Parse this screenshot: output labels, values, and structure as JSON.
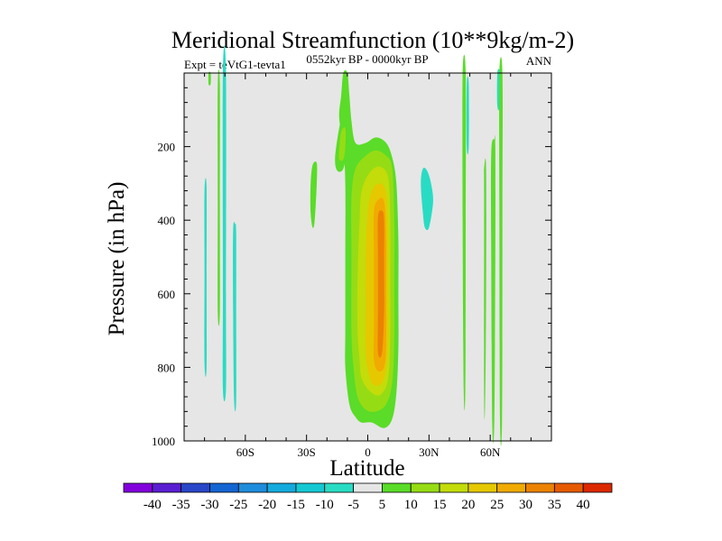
{
  "chart_data": {
    "type": "contour",
    "title": "Meridional Streamfunction (10**9kg/m-2)",
    "experiment_label": "Expt = teVtG1-tevta1",
    "period_label": "0552kyr BP - 0000kyr BP",
    "season_label": "ANN",
    "xlabel": "Latitude",
    "ylabel": "Pressure (in hPa)",
    "x_ticks": [
      {
        "value": -60,
        "label": "60S"
      },
      {
        "value": -30,
        "label": "30S"
      },
      {
        "value": 0,
        "label": "0"
      },
      {
        "value": 30,
        "label": "30N"
      },
      {
        "value": 60,
        "label": "60N"
      }
    ],
    "y_ticks": [
      {
        "value": 200,
        "label": "200"
      },
      {
        "value": 400,
        "label": "400"
      },
      {
        "value": 600,
        "label": "600"
      },
      {
        "value": 800,
        "label": "800"
      },
      {
        "value": 1000,
        "label": "1000"
      }
    ],
    "xlim": [
      -90,
      90
    ],
    "ylim": [
      0,
      1000
    ],
    "background_color": "#e6e6e6",
    "colorbar": {
      "labels": [
        "-40",
        "-35",
        "-30",
        "-25",
        "-20",
        "-15",
        "-10",
        "-5",
        "5",
        "10",
        "15",
        "20",
        "25",
        "30",
        "35",
        "40"
      ],
      "colors": [
        "#8200dc",
        "#5a1ed2",
        "#2846c8",
        "#1464d2",
        "#1e8cdc",
        "#14aadc",
        "#14c8d2",
        "#28dcc3",
        "#e6e6e6",
        "#5adc28",
        "#96dc14",
        "#c3dc0a",
        "#e6c800",
        "#f0aa00",
        "#eb8200",
        "#e65a00",
        "#dc2800"
      ]
    },
    "regions": [
      {
        "name": "positive-band-5-10",
        "level": "5 to 10",
        "color": "#5adc28",
        "points": [
          [
            -11,
            700
          ],
          [
            -11,
            500
          ],
          [
            -11,
            300
          ],
          [
            -12,
            200
          ],
          [
            -14,
            120
          ],
          [
            -13,
            60
          ],
          [
            -12,
            0
          ],
          [
            -10,
            0
          ],
          [
            -9,
            60
          ],
          [
            -8,
            130
          ],
          [
            -6,
            190
          ],
          [
            -1,
            190
          ],
          [
            4,
            175
          ],
          [
            9,
            190
          ],
          [
            12,
            230
          ],
          [
            14,
            300
          ],
          [
            15,
            450
          ],
          [
            15,
            600
          ],
          [
            15,
            750
          ],
          [
            14,
            870
          ],
          [
            12,
            940
          ],
          [
            8,
            965
          ],
          [
            2,
            950
          ],
          [
            -3,
            950
          ],
          [
            -6,
            935
          ],
          [
            -9,
            900
          ],
          [
            -11,
            800
          ]
        ]
      },
      {
        "name": "positive-band-10-15",
        "level": "10 to 15",
        "color": "#96dc14",
        "points": [
          [
            -8,
            700
          ],
          [
            -8,
            500
          ],
          [
            -8,
            340
          ],
          [
            -6,
            260
          ],
          [
            -1,
            225
          ],
          [
            4,
            210
          ],
          [
            9,
            225
          ],
          [
            12,
            260
          ],
          [
            13,
            400
          ],
          [
            13,
            550
          ],
          [
            13,
            720
          ],
          [
            12,
            840
          ],
          [
            9,
            900
          ],
          [
            4,
            920
          ],
          [
            -1,
            915
          ],
          [
            -5,
            880
          ],
          [
            -7,
            800
          ]
        ]
      },
      {
        "name": "positive-band-15-20",
        "level": "15 to 20",
        "color": "#c3dc0a",
        "points": [
          [
            -5,
            700
          ],
          [
            -5,
            550
          ],
          [
            -4,
            400
          ],
          [
            -3,
            320
          ],
          [
            1,
            270
          ],
          [
            6,
            255
          ],
          [
            10,
            285
          ],
          [
            11,
            400
          ],
          [
            11,
            550
          ],
          [
            11,
            700
          ],
          [
            10,
            830
          ],
          [
            6,
            875
          ],
          [
            1,
            865
          ],
          [
            -3,
            830
          ],
          [
            -4,
            780
          ]
        ]
      },
      {
        "name": "positive-band-20-25",
        "level": "20 to 25",
        "color": "#e6c800",
        "points": [
          [
            -1,
            650
          ],
          [
            -1,
            500
          ],
          [
            0,
            380
          ],
          [
            2,
            320
          ],
          [
            6,
            300
          ],
          [
            9,
            330
          ],
          [
            10,
            450
          ],
          [
            10,
            600
          ],
          [
            10,
            740
          ],
          [
            8,
            830
          ],
          [
            4,
            850
          ],
          [
            1,
            830
          ],
          [
            -1,
            760
          ]
        ]
      },
      {
        "name": "positive-band-25-30",
        "level": "25 to 30",
        "color": "#f0aa00",
        "points": [
          [
            3,
            700
          ],
          [
            3,
            500
          ],
          [
            3,
            380
          ],
          [
            5,
            345
          ],
          [
            8,
            350
          ],
          [
            9,
            450
          ],
          [
            9,
            600
          ],
          [
            9,
            740
          ],
          [
            8,
            800
          ],
          [
            5,
            810
          ],
          [
            3,
            780
          ]
        ]
      },
      {
        "name": "positive-band-30-35",
        "level": "30 to 35",
        "color": "#eb8200",
        "points": [
          [
            5,
            650
          ],
          [
            5,
            500
          ],
          [
            5,
            390
          ],
          [
            7,
            375
          ],
          [
            8,
            400
          ],
          [
            8,
            520
          ],
          [
            8,
            650
          ],
          [
            7,
            760
          ],
          [
            5,
            760
          ]
        ]
      },
      {
        "name": "upper-left-patch",
        "level": "5 to 10",
        "color": "#5adc28",
        "points": [
          [
            -16,
            230
          ],
          [
            -14,
            150
          ],
          [
            -12,
            110
          ],
          [
            -10,
            140
          ],
          [
            -10,
            200
          ],
          [
            -12,
            260
          ],
          [
            -15,
            265
          ]
        ]
      },
      {
        "name": "upper-left-core",
        "level": "10 to 15",
        "color": "#96dc14",
        "points": [
          [
            -14,
            210
          ],
          [
            -13,
            160
          ],
          [
            -11,
            150
          ],
          [
            -11,
            200
          ],
          [
            -12,
            235
          ],
          [
            -14,
            235
          ]
        ]
      },
      {
        "name": "midlat-south-patch",
        "level": "5 to 10",
        "color": "#5adc28",
        "points": [
          [
            -28,
            300
          ],
          [
            -27,
            250
          ],
          [
            -25,
            245
          ],
          [
            -25,
            300
          ],
          [
            -26,
            400
          ],
          [
            -27,
            420
          ],
          [
            -28,
            380
          ]
        ]
      },
      {
        "name": "negative-patch-28N",
        "level": "-10 to -5",
        "color": "#28dcc3",
        "points": [
          [
            26,
            300
          ],
          [
            27,
            260
          ],
          [
            29,
            265
          ],
          [
            31,
            300
          ],
          [
            32,
            350
          ],
          [
            30,
            420
          ],
          [
            28,
            420
          ],
          [
            27,
            380
          ]
        ]
      },
      {
        "name": "thin-neg-80S",
        "level": "-10 to -5",
        "color": "#28dcc3",
        "points": [
          [
            -80,
            550
          ],
          [
            -80,
            320
          ],
          [
            -79,
            310
          ],
          [
            -79,
            550
          ],
          [
            -79,
            800
          ],
          [
            -80,
            790
          ]
        ]
      },
      {
        "name": "thin-pos-78S",
        "level": "5 to 10",
        "color": "#5adc28",
        "points": [
          [
            -78,
            0
          ],
          [
            -77,
            0
          ],
          [
            -77,
            30
          ],
          [
            -78,
            30
          ]
        ]
      },
      {
        "name": "thin-pos-73S",
        "level": "5 to 10",
        "color": "#5adc28",
        "points": [
          [
            -73.5,
            350
          ],
          [
            -73.5,
            30
          ],
          [
            -72.5,
            30
          ],
          [
            -72.5,
            350
          ],
          [
            -72.5,
            650
          ],
          [
            -73.5,
            650
          ]
        ]
      },
      {
        "name": "thin-neg-71S",
        "level": "-10 to -5",
        "color": "#28dcc3",
        "points": [
          [
            -71,
            600
          ],
          [
            -71,
            0
          ],
          [
            -69.5,
            0
          ],
          [
            -69.5,
            600
          ],
          [
            -69.5,
            860
          ],
          [
            -71,
            860
          ]
        ]
      },
      {
        "name": "thin-neg-65S",
        "level": "-10 to -5",
        "color": "#28dcc3",
        "points": [
          [
            -66,
            650
          ],
          [
            -66,
            430
          ],
          [
            -65,
            410
          ],
          [
            -64.5,
            440
          ],
          [
            -64.5,
            650
          ],
          [
            -64.5,
            890
          ],
          [
            -65.5,
            890
          ]
        ]
      },
      {
        "name": "thin-pos-47N",
        "level": "5 to 10",
        "color": "#5adc28",
        "points": [
          [
            46.5,
            400
          ],
          [
            46.5,
            0
          ],
          [
            48,
            0
          ],
          [
            48,
            400
          ],
          [
            47.8,
            860
          ],
          [
            47,
            860
          ]
        ]
      },
      {
        "name": "thin-neg-50N",
        "level": "-10 to -5",
        "color": "#28dcc3",
        "points": [
          [
            48.5,
            30
          ],
          [
            49.5,
            30
          ],
          [
            49.5,
            200
          ],
          [
            48.5,
            200
          ]
        ]
      },
      {
        "name": "thin-pos-61N",
        "level": "5 to 10",
        "color": "#5adc28",
        "points": [
          [
            60.5,
            500
          ],
          [
            60.5,
            220
          ],
          [
            62,
            180
          ],
          [
            62.5,
            200
          ],
          [
            62.5,
            500
          ],
          [
            62,
            950
          ],
          [
            61,
            950
          ]
        ]
      },
      {
        "name": "thin-pos-58N",
        "level": "5 to 10",
        "color": "#5adc28",
        "points": [
          [
            57,
            330
          ],
          [
            57,
            260
          ],
          [
            58,
            260
          ],
          [
            58,
            600
          ],
          [
            57.5,
            900
          ],
          [
            57,
            880
          ]
        ]
      },
      {
        "name": "thin-neg-64N",
        "level": "-10 to -5",
        "color": "#28dcc3",
        "points": [
          [
            63.5,
            0
          ],
          [
            64.8,
            0
          ],
          [
            64.8,
            90
          ],
          [
            63.5,
            90
          ]
        ]
      },
      {
        "name": "thin-pos-65N",
        "level": "5 to 10",
        "color": "#5adc28",
        "points": [
          [
            64.5,
            350
          ],
          [
            64.5,
            0
          ],
          [
            66,
            0
          ],
          [
            66,
            350
          ],
          [
            65.8,
            940
          ],
          [
            64.8,
            940
          ]
        ]
      }
    ]
  }
}
